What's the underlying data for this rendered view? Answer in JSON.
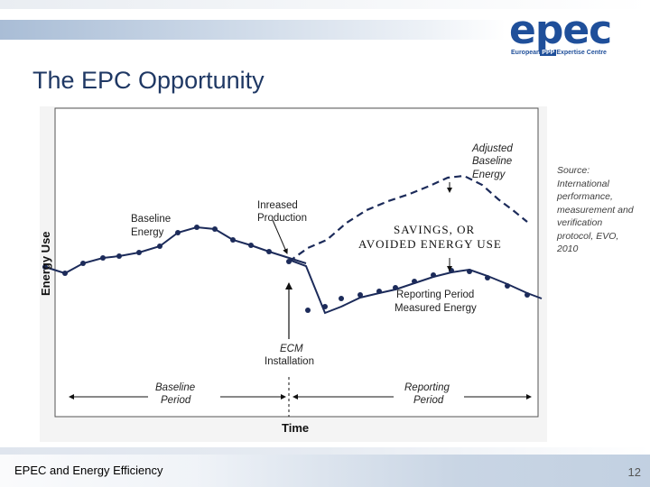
{
  "slide": {
    "title": "The EPC Opportunity",
    "footer_left": "EPEC and Energy Efficiency",
    "page_number": "12",
    "source_note": "Source: International performance, measurement and verification protocol, EVO, 2010"
  },
  "logo": {
    "word": "epec",
    "sub_left": "European",
    "sub_mid": "PPP",
    "sub_right": "Expertise Centre",
    "color": "#1f4f9a"
  },
  "diagram": {
    "y_axis_label": "Energy Use",
    "x_axis_label": "Time",
    "labels": {
      "baseline_energy_1": "Baseline",
      "baseline_energy_2": "Energy",
      "increased_production_1": "Inreased",
      "increased_production_2": "Production",
      "adjusted_baseline_1": "Adjusted",
      "adjusted_baseline_2": "Baseline",
      "adjusted_baseline_3": "Energy",
      "savings_1": "SAVINGS, OR",
      "savings_2": "AVOIDED ENERGY USE",
      "reporting_measured_1": "Reporting Period",
      "reporting_measured_2": "Measured Energy",
      "ecm_1": "ECM",
      "ecm_2": "Installation",
      "baseline_period_1": "Baseline",
      "baseline_period_2": "Period",
      "reporting_period_1": "Reporting",
      "reporting_period_2": "Period"
    }
  }
}
